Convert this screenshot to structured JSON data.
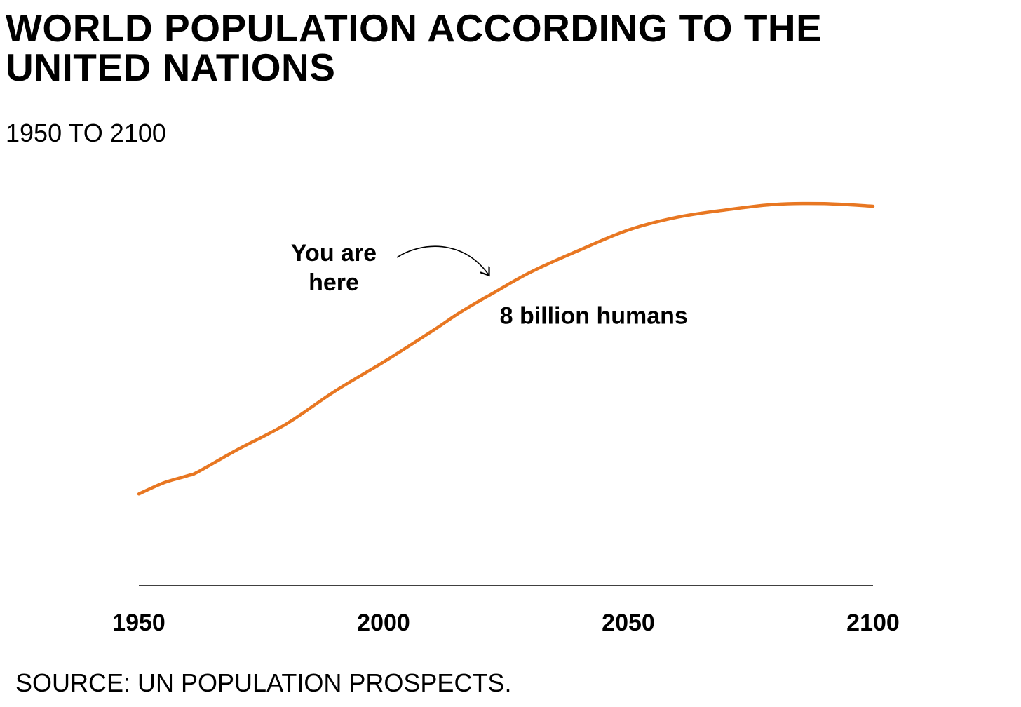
{
  "chart_data": {
    "type": "line",
    "title": "WORLD POPULATION ACCORDING TO THE UNITED NATIONS",
    "subtitle": "1950 TO 2100",
    "xlabel": "",
    "ylabel": "",
    "xlim": [
      1950,
      2100
    ],
    "ylim": [
      0,
      11
    ],
    "x_ticks": [
      1950,
      2000,
      2050,
      2100
    ],
    "y_axis_shown": false,
    "grid": false,
    "series": [
      {
        "color": "#e87722",
        "x": [
          1950,
          1955,
          1960,
          1962,
          1970,
          1980,
          1990,
          2000,
          2010,
          2015,
          2020,
          2022,
          2030,
          2040,
          2050,
          2060,
          2070,
          2080,
          2090,
          2100
        ],
        "y": [
          2.5,
          2.8,
          3.0,
          3.1,
          3.7,
          4.4,
          5.3,
          6.1,
          6.95,
          7.4,
          7.8,
          7.95,
          8.55,
          9.15,
          9.7,
          10.05,
          10.25,
          10.4,
          10.42,
          10.35
        ]
      }
    ],
    "annotations": [
      {
        "text_lines": [
          "You are",
          "here"
        ],
        "arrow_to": {
          "x": 2022,
          "y": 7.95
        }
      },
      {
        "text": "8 billion humans",
        "at": {
          "x": 2022,
          "y": 7.95
        }
      }
    ]
  },
  "footer": {
    "source": "SOURCE: UN POPULATION PROSPECTS."
  }
}
